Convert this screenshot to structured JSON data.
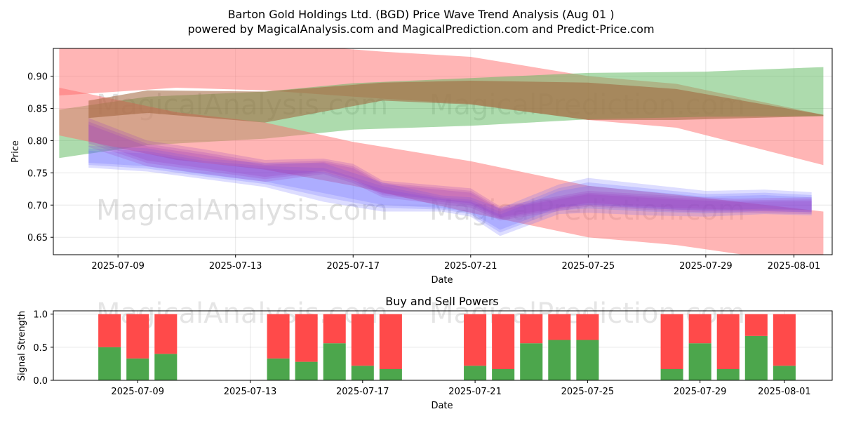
{
  "title_line1": "Barton Gold Holdings Ltd. (BGD) Price Wave Trend Analysis (Aug 01 )",
  "title_line2": "powered by MagicalAnalysis.com and MagicalPrediction.com and Predict-Price.com",
  "watermarks": [
    "MagicalAnalysis.com",
    "MagicalPrediction.com"
  ],
  "colors": {
    "band_red": "#ff6b6b",
    "band_green": "#5cb85c",
    "band_blue": "#6464ff",
    "band_purple": "#9b3dbf",
    "band_brown": "#a0633a",
    "buy": "#4ca64c",
    "sell": "#ff4a4a"
  },
  "chart_data": [
    {
      "type": "area",
      "title": "",
      "xlabel": "Date",
      "ylabel": "Price",
      "xlim": [
        "2025-07-06.8",
        "2025-08-02.3"
      ],
      "ylim": [
        0.623,
        0.943
      ],
      "x_ticks": [
        "2025-07-09",
        "2025-07-13",
        "2025-07-17",
        "2025-07-21",
        "2025-07-25",
        "2025-07-29",
        "2025-08-01"
      ],
      "y_ticks": [
        0.65,
        0.7,
        0.75,
        0.8,
        0.85,
        0.9
      ],
      "y_tick_labels": [
        "0.65",
        "0.70",
        "0.75",
        "0.80",
        "0.85",
        "0.90"
      ],
      "bands": [
        {
          "name": "red-upper",
          "color": "red",
          "x": [
            "2025-07-07",
            "2025-07-11",
            "2025-07-14",
            "2025-07-18",
            "2025-07-21",
            "2025-07-25",
            "2025-07-28",
            "2025-08-02"
          ],
          "upper": [
            0.955,
            0.958,
            0.952,
            0.938,
            0.93,
            0.9,
            0.888,
            0.84
          ],
          "lower": [
            0.87,
            0.882,
            0.878,
            0.865,
            0.857,
            0.832,
            0.82,
            0.762
          ]
        },
        {
          "name": "green-upper",
          "color": "green",
          "x": [
            "2025-07-07",
            "2025-07-10",
            "2025-07-14",
            "2025-07-17",
            "2025-07-21",
            "2025-07-25",
            "2025-07-29",
            "2025-08-02"
          ],
          "upper": [
            0.848,
            0.868,
            0.876,
            0.889,
            0.897,
            0.905,
            0.907,
            0.914
          ],
          "lower": [
            0.773,
            0.793,
            0.803,
            0.817,
            0.823,
            0.833,
            0.837,
            0.838
          ]
        },
        {
          "name": "red-lower",
          "color": "red",
          "x": [
            "2025-07-07",
            "2025-07-11",
            "2025-07-14",
            "2025-07-17",
            "2025-07-21",
            "2025-07-25",
            "2025-07-28",
            "2025-08-02"
          ],
          "upper": [
            0.882,
            0.844,
            0.828,
            0.798,
            0.768,
            0.73,
            0.716,
            0.69
          ],
          "lower": [
            0.808,
            0.77,
            0.755,
            0.73,
            0.688,
            0.65,
            0.638,
            0.605
          ]
        },
        {
          "name": "blue-wave",
          "color": "blue",
          "x": [
            "2025-07-08",
            "2025-07-10",
            "2025-07-12",
            "2025-07-14",
            "2025-07-16",
            "2025-07-18",
            "2025-07-20",
            "2025-07-21",
            "2025-07-22",
            "2025-07-24",
            "2025-07-25",
            "2025-07-27",
            "2025-07-29",
            "2025-07-31",
            "2025-08-01.6"
          ],
          "upper": [
            0.792,
            0.788,
            0.772,
            0.765,
            0.765,
            0.735,
            0.715,
            0.712,
            0.695,
            0.732,
            0.742,
            0.732,
            0.722,
            0.724,
            0.72
          ],
          "lower": [
            0.758,
            0.752,
            0.74,
            0.728,
            0.705,
            0.69,
            0.69,
            0.682,
            0.652,
            0.686,
            0.688,
            0.684,
            0.682,
            0.686,
            0.684
          ]
        },
        {
          "name": "purple-wave",
          "color": "purple",
          "x": [
            "2025-07-08",
            "2025-07-10",
            "2025-07-12",
            "2025-07-14",
            "2025-07-16",
            "2025-07-17",
            "2025-07-18",
            "2025-07-21",
            "2025-07-22",
            "2025-07-25",
            "2025-07-28",
            "2025-07-30",
            "2025-08-01.6"
          ],
          "upper": [
            0.835,
            0.8,
            0.786,
            0.77,
            0.772,
            0.764,
            0.738,
            0.726,
            0.698,
            0.722,
            0.714,
            0.71,
            0.712
          ],
          "lower": [
            0.79,
            0.76,
            0.748,
            0.736,
            0.748,
            0.734,
            0.712,
            0.696,
            0.676,
            0.698,
            0.69,
            0.688,
            0.686
          ]
        },
        {
          "name": "brown-overlap",
          "color": "brown",
          "x": [
            "2025-07-08",
            "2025-07-10",
            "2025-07-14",
            "2025-07-18",
            "2025-07-21",
            "2025-07-25",
            "2025-07-28",
            "2025-08-02"
          ],
          "upper": [
            0.862,
            0.878,
            0.876,
            0.89,
            0.893,
            0.89,
            0.88,
            0.84
          ],
          "lower": [
            0.835,
            0.843,
            0.828,
            0.862,
            0.856,
            0.832,
            0.832,
            0.838
          ]
        }
      ]
    },
    {
      "type": "bar",
      "title": "Buy and Sell Powers",
      "xlabel": "Date",
      "ylabel": "Signal Strength",
      "ylim": [
        0,
        1.05
      ],
      "y_ticks": [
        0.0,
        0.5,
        1.0
      ],
      "y_tick_labels": [
        "0.0",
        "0.5",
        "1.0"
      ],
      "x_ticks": [
        "2025-07-09",
        "2025-07-13",
        "2025-07-17",
        "2025-07-21",
        "2025-07-25",
        "2025-07-29",
        "2025-08-01"
      ],
      "categories": [
        "2025-07-08",
        "2025-07-09",
        "2025-07-10",
        "2025-07-14",
        "2025-07-15",
        "2025-07-16",
        "2025-07-17",
        "2025-07-18",
        "2025-07-21",
        "2025-07-22",
        "2025-07-23",
        "2025-07-24",
        "2025-07-25",
        "2025-07-28",
        "2025-07-29",
        "2025-07-30",
        "2025-07-31",
        "2025-08-01"
      ],
      "series": [
        {
          "name": "Buy",
          "values": [
            0.5,
            0.33,
            0.4,
            0.33,
            0.28,
            0.56,
            0.22,
            0.17,
            0.22,
            0.17,
            0.56,
            0.61,
            0.61,
            0.17,
            0.56,
            0.17,
            0.67,
            0.22
          ]
        },
        {
          "name": "Sell",
          "values": [
            0.5,
            0.67,
            0.6,
            0.67,
            0.72,
            0.44,
            0.78,
            0.83,
            0.78,
            0.83,
            0.44,
            0.39,
            0.39,
            0.83,
            0.44,
            0.83,
            0.33,
            0.78
          ]
        }
      ]
    }
  ]
}
